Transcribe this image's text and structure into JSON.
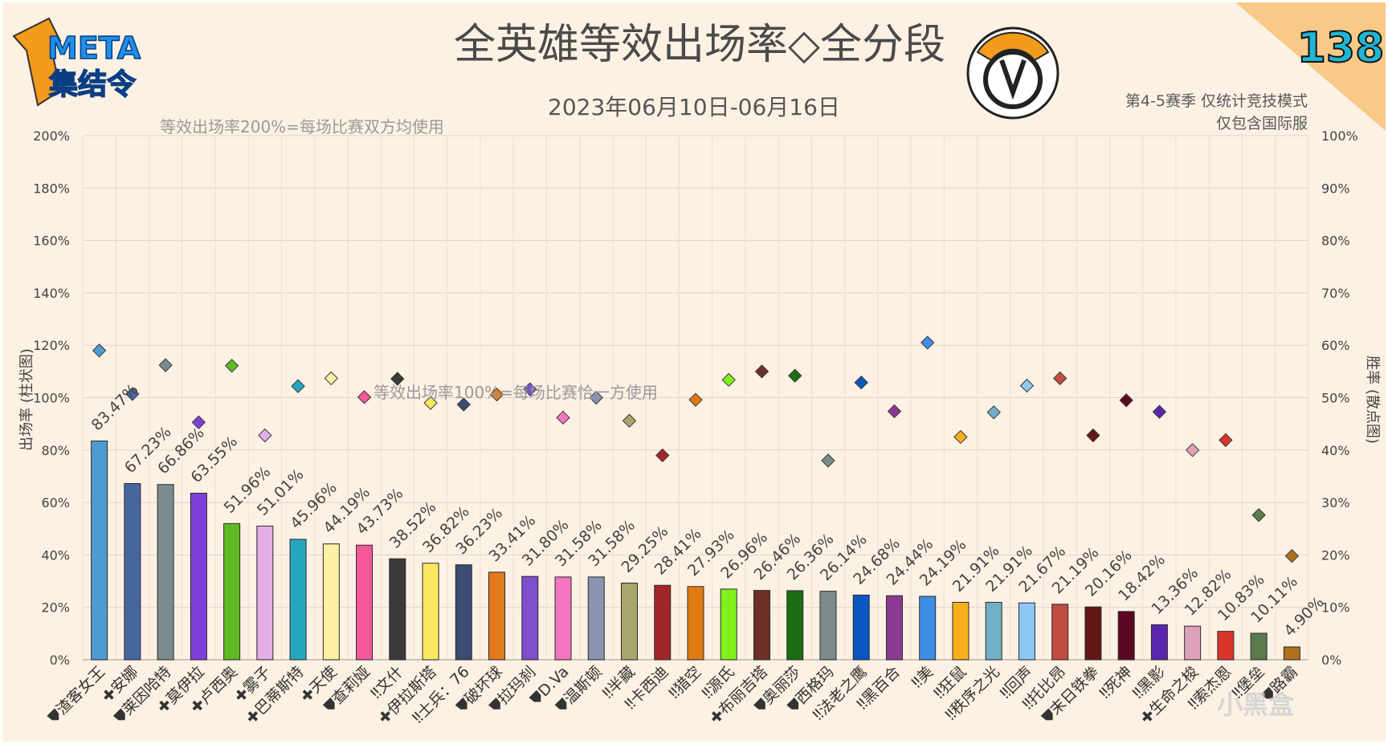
{
  "title": "全英雄等效出场率◇全分段",
  "date_range": "2023年06月10日-06月16日",
  "issue_number": "138",
  "brand": {
    "line1": "META",
    "line2": "集结令"
  },
  "notes": {
    "line1": "第4-5赛季 仅统计竞技模式",
    "line2": "仅包含国际服"
  },
  "watermark": "小黑盒",
  "chart_data": {
    "type": "bar",
    "title": "全英雄等效出场率◇全分段",
    "xlabel": "",
    "ylabel": "出场率 (柱状图)",
    "y2label": "胜率 (散点图)",
    "ylim": [
      0,
      200
    ],
    "y2lim": [
      0,
      100
    ],
    "yticks": [
      "0%",
      "20%",
      "40%",
      "60%",
      "80%",
      "100%",
      "120%",
      "140%",
      "160%",
      "180%",
      "200%"
    ],
    "y2ticks": [
      "0%",
      "10%",
      "20%",
      "30%",
      "40%",
      "50%",
      "60%",
      "70%",
      "80%",
      "90%",
      "100%"
    ],
    "grid": true,
    "annotations": [
      "等效出场率200%=每场比赛双方均使用",
      "等效出场率100%=每场比赛恰一方使用"
    ],
    "role_icons": {
      "tank": "shield-icon",
      "damage": "bullets-icon",
      "support": "cross-icon"
    },
    "heroes": [
      {
        "name": "渣客女王",
        "role": "tank",
        "pick": 83.47,
        "pick_label": "83.47%",
        "win": 59.0,
        "color": "#4e9bd4"
      },
      {
        "name": "安娜",
        "role": "support",
        "pick": 67.23,
        "pick_label": "67.23%",
        "win": 50.7,
        "color": "#46679e"
      },
      {
        "name": "莱因哈特",
        "role": "tank",
        "pick": 66.86,
        "pick_label": "66.86%",
        "win": 56.2,
        "color": "#7b8c91"
      },
      {
        "name": "莫伊拉",
        "role": "support",
        "pick": 63.55,
        "pick_label": "63.55%",
        "win": 45.3,
        "color": "#7d3fd8"
      },
      {
        "name": "卢西奥",
        "role": "support",
        "pick": 51.96,
        "pick_label": "51.96%",
        "win": 56.1,
        "color": "#5fba22"
      },
      {
        "name": "雾子",
        "role": "support",
        "pick": 51.01,
        "pick_label": "51.01%",
        "win": 42.8,
        "color": "#e3aee8"
      },
      {
        "name": "巴蒂斯特",
        "role": "support",
        "pick": 45.96,
        "pick_label": "45.96%",
        "win": 52.2,
        "color": "#27a6bf"
      },
      {
        "name": "天使",
        "role": "support",
        "pick": 44.19,
        "pick_label": "44.19%",
        "win": 53.7,
        "color": "#fff0a6"
      },
      {
        "name": "查莉娅",
        "role": "tank",
        "pick": 43.73,
        "pick_label": "43.73%",
        "win": 50.1,
        "color": "#f4579c"
      },
      {
        "name": "文什",
        "role": "damage",
        "pick": 38.52,
        "pick_label": "38.52%",
        "win": 53.6,
        "color": "#3a3a3a"
      },
      {
        "name": "伊拉斯塔",
        "role": "support",
        "pick": 36.82,
        "pick_label": "36.82%",
        "win": 49.0,
        "color": "#fbe85f"
      },
      {
        "name": "士兵：76",
        "role": "damage",
        "pick": 36.23,
        "pick_label": "36.23%",
        "win": 48.7,
        "color": "#3c4b72"
      },
      {
        "name": "破坏球",
        "role": "tank",
        "pick": 33.41,
        "pick_label": "33.41%",
        "win": 50.6,
        "color": "#e2791c"
      },
      {
        "name": "拉玛刹",
        "role": "tank",
        "pick": 31.8,
        "pick_label": "31.80%",
        "win": 51.6,
        "color": "#7e4ecb"
      },
      {
        "name": "D.Va",
        "role": "tank",
        "pick": 31.58,
        "pick_label": "31.58%",
        "win": 46.2,
        "color": "#f275c0"
      },
      {
        "name": "温斯顿",
        "role": "tank",
        "pick": 31.58,
        "pick_label": "31.58%",
        "win": 50.0,
        "color": "#8b94b0"
      },
      {
        "name": "半藏",
        "role": "damage",
        "pick": 29.25,
        "pick_label": "29.25%",
        "win": 45.6,
        "color": "#a9a56c"
      },
      {
        "name": "卡西迪",
        "role": "damage",
        "pick": 28.41,
        "pick_label": "28.41%",
        "win": 39.0,
        "color": "#a22529"
      },
      {
        "name": "猎空",
        "role": "damage",
        "pick": 27.93,
        "pick_label": "27.93%",
        "win": 49.6,
        "color": "#e07b12"
      },
      {
        "name": "源氏",
        "role": "damage",
        "pick": 26.96,
        "pick_label": "26.96%",
        "win": 53.4,
        "color": "#7ff21a"
      },
      {
        "name": "布丽吉塔",
        "role": "support",
        "pick": 26.46,
        "pick_label": "26.46%",
        "win": 55.0,
        "color": "#6d3128"
      },
      {
        "name": "奥丽莎",
        "role": "tank",
        "pick": 26.36,
        "pick_label": "26.36%",
        "win": 54.2,
        "color": "#1c6e14"
      },
      {
        "name": "西格玛",
        "role": "tank",
        "pick": 26.14,
        "pick_label": "26.14%",
        "win": 38.0,
        "color": "#7c8c8c"
      },
      {
        "name": "法老之鹰",
        "role": "damage",
        "pick": 24.68,
        "pick_label": "24.68%",
        "win": 52.9,
        "color": "#0c56c2"
      },
      {
        "name": "黑百合",
        "role": "damage",
        "pick": 24.44,
        "pick_label": "24.44%",
        "win": 47.4,
        "color": "#8b3a93"
      },
      {
        "name": "美",
        "role": "damage",
        "pick": 24.19,
        "pick_label": "24.19%",
        "win": 60.5,
        "color": "#3c8ce4"
      },
      {
        "name": "狂鼠",
        "role": "damage",
        "pick": 21.91,
        "pick_label": "21.91%",
        "win": 42.5,
        "color": "#f7af1c"
      },
      {
        "name": "秩序之光",
        "role": "damage",
        "pick": 21.91,
        "pick_label": "21.91%",
        "win": 47.2,
        "color": "#71afc6"
      },
      {
        "name": "回声",
        "role": "damage",
        "pick": 21.67,
        "pick_label": "21.67%",
        "win": 52.3,
        "color": "#8dc8f4"
      },
      {
        "name": "托比昂",
        "role": "damage",
        "pick": 21.19,
        "pick_label": "21.19%",
        "win": 53.7,
        "color": "#c34d42"
      },
      {
        "name": "末日铁拳",
        "role": "tank",
        "pick": 20.16,
        "pick_label": "20.16%",
        "win": 42.8,
        "color": "#621812"
      },
      {
        "name": "死神",
        "role": "damage",
        "pick": 18.42,
        "pick_label": "18.42%",
        "win": 49.5,
        "color": "#5c0824"
      },
      {
        "name": "黑影",
        "role": "damage",
        "pick": 13.36,
        "pick_label": "13.36%",
        "win": 47.3,
        "color": "#5a26ad"
      },
      {
        "name": "生命之梭",
        "role": "support",
        "pick": 12.82,
        "pick_label": "12.82%",
        "win": 40.0,
        "color": "#dda2b9"
      },
      {
        "name": "索杰恩",
        "role": "damage",
        "pick": 10.83,
        "pick_label": "10.83%",
        "win": 41.9,
        "color": "#d9352b"
      },
      {
        "name": "堡垒",
        "role": "damage",
        "pick": 10.11,
        "pick_label": "10.11%",
        "win": 27.6,
        "color": "#5a7a4c"
      },
      {
        "name": "路霸",
        "role": "tank",
        "pick": 4.9,
        "pick_label": "4.90%",
        "win": 19.8,
        "color": "#b0701e"
      }
    ]
  }
}
